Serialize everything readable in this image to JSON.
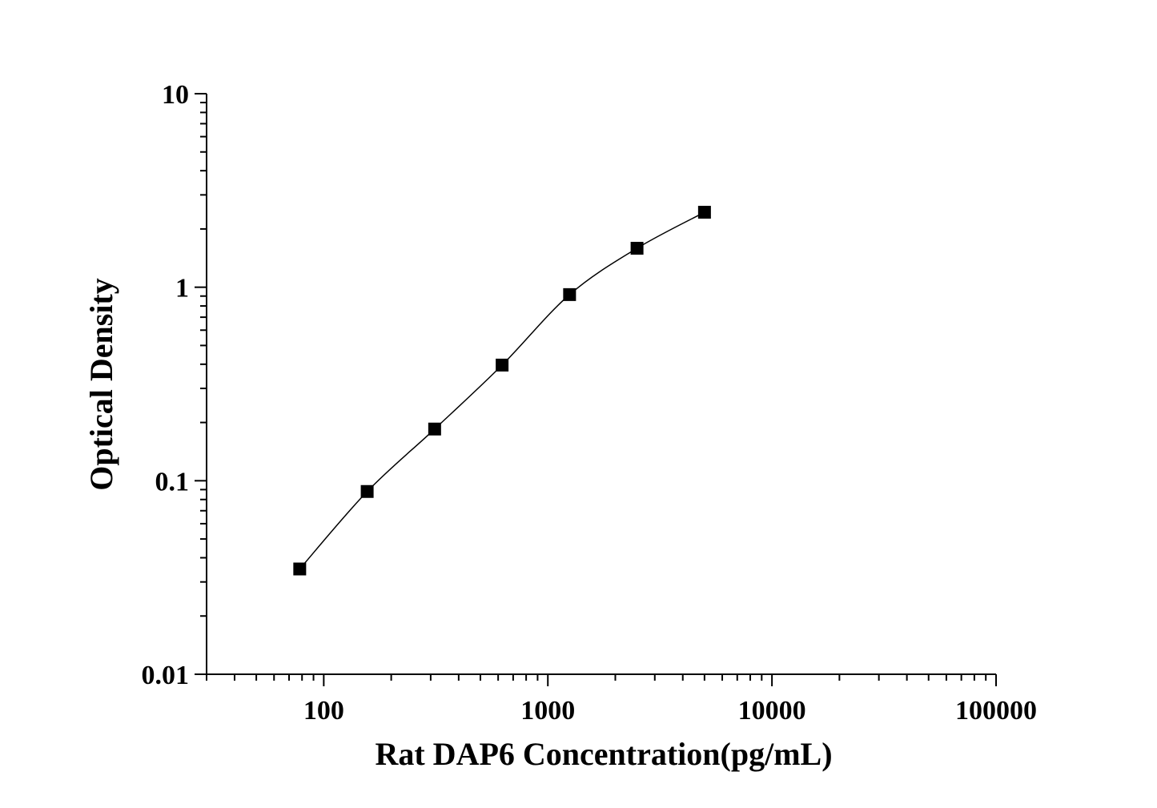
{
  "chart_data": {
    "type": "line",
    "title": "",
    "xlabel": "Rat DAP6 Concentration(pg/mL)",
    "ylabel": "Optical Density",
    "x_scale": "log",
    "y_scale": "log",
    "xlim": [
      30,
      100000
    ],
    "ylim": [
      0.01,
      10
    ],
    "x_ticks": [
      100,
      1000,
      10000,
      100000
    ],
    "x_tick_labels": [
      "100",
      "1000",
      "10000",
      "100000"
    ],
    "y_ticks": [
      0.01,
      0.1,
      1,
      10
    ],
    "y_tick_labels": [
      "0.01",
      "0.1",
      "1",
      "10"
    ],
    "grid": false,
    "marker": "square",
    "color": "#000000",
    "series": [
      {
        "x": [
          78.125,
          156.25,
          312.5,
          625,
          1250,
          2500,
          5000
        ],
        "y": [
          0.035,
          0.088,
          0.185,
          0.396,
          0.916,
          1.59,
          2.44
        ]
      }
    ]
  }
}
